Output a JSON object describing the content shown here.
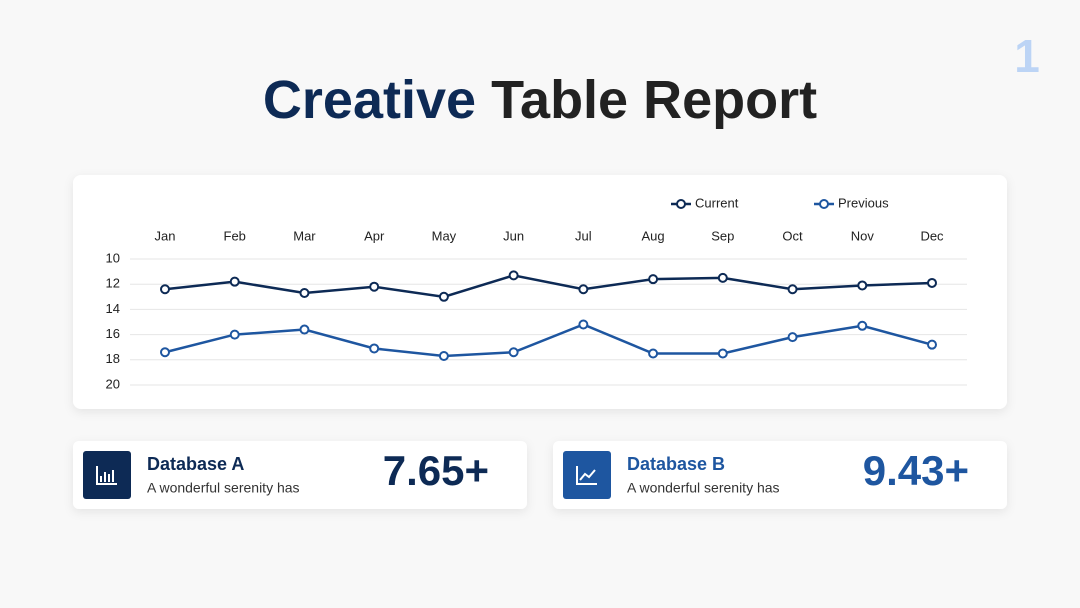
{
  "slide_number": "1",
  "title": {
    "highlight": "Creative",
    "rest": "Table Report"
  },
  "chart_data": {
    "type": "line",
    "categories": [
      "Jan",
      "Feb",
      "Mar",
      "Apr",
      "May",
      "Jun",
      "Jul",
      "Aug",
      "Sep",
      "Oct",
      "Nov",
      "Dec"
    ],
    "series": [
      {
        "name": "Current",
        "color": "#0d2a55",
        "values": [
          12.4,
          11.8,
          12.7,
          12.2,
          13.0,
          11.3,
          12.4,
          11.6,
          11.5,
          12.4,
          12.1,
          11.9
        ]
      },
      {
        "name": "Previous",
        "color": "#1e56a0",
        "values": [
          17.4,
          16.0,
          15.6,
          17.1,
          17.7,
          17.4,
          15.2,
          17.5,
          17.5,
          16.2,
          15.3,
          16.8
        ]
      }
    ],
    "ylim": [
      10,
      20
    ],
    "yticks": [
      10,
      12,
      14,
      16,
      18,
      20
    ],
    "y_inverted": true,
    "grid": true,
    "legend": "top-right"
  },
  "cards": [
    {
      "title": "Database A",
      "text": "A wonderful serenity has",
      "value": "7.65+",
      "color": "#0d2a55"
    },
    {
      "title": "Database B",
      "text": "A wonderful serenity has",
      "value": "9.43+",
      "color": "#1e56a0"
    }
  ]
}
